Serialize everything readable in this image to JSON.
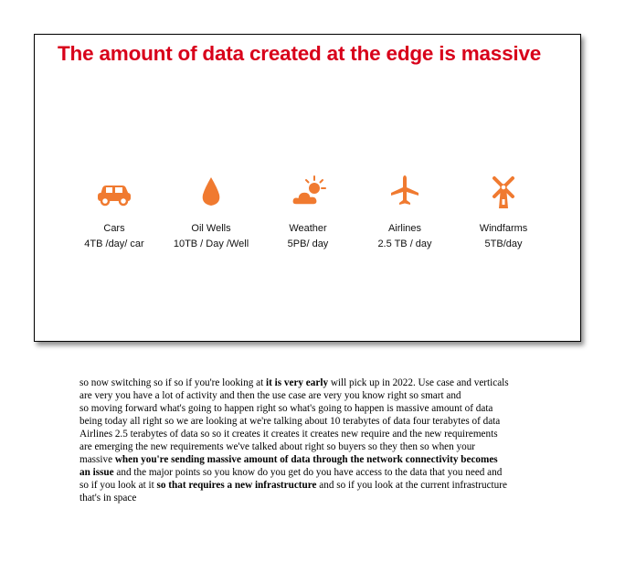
{
  "slide": {
    "title": "The amount of data created at the edge is massive",
    "accent_color": "#d8001a",
    "icon_color": "#f07a30",
    "items": [
      {
        "label": "Cars",
        "value": "4TB /day/ car",
        "icon": "car-icon"
      },
      {
        "label": "Oil Wells",
        "value": "10TB / Day /Well",
        "icon": "oil-drop-icon"
      },
      {
        "label": "Weather",
        "value": "5PB/ day",
        "icon": "weather-icon"
      },
      {
        "label": "Airlines",
        "value": "2.5 TB / day",
        "icon": "airplane-icon"
      },
      {
        "label": "Windfarms",
        "value": "5TB/day",
        "icon": "windmill-icon"
      }
    ]
  },
  "notes": {
    "p1_a": "so now switching so if so if you're looking at ",
    "p1_b": "it is very early",
    "p1_c": " will pick up in 2022.  Use case and verticals are very you have a lot of activity and then the use case are very you know right so smart and",
    "p2_a": "so moving forward what's going to happen right so what's going to happen is massive amount of data being today all right so we are looking at we're talking about 10 terabytes of data four terabytes of data Airlines 2.5 terabytes of data so so it creates it creates it creates new require and the new requirements are emerging the new requirements we've talked about right so buyers so they then so when your massive ",
    "p2_b": "when you're sending massive amount of data through the network connectivity becomes an issue",
    "p2_c": " and the major points so you know do you get do you have access to the data that you need and so if you look at it ",
    "p2_d": "so that requires a new infrastructure",
    "p2_e": " and so if you look at the current infrastructure that's in space"
  }
}
